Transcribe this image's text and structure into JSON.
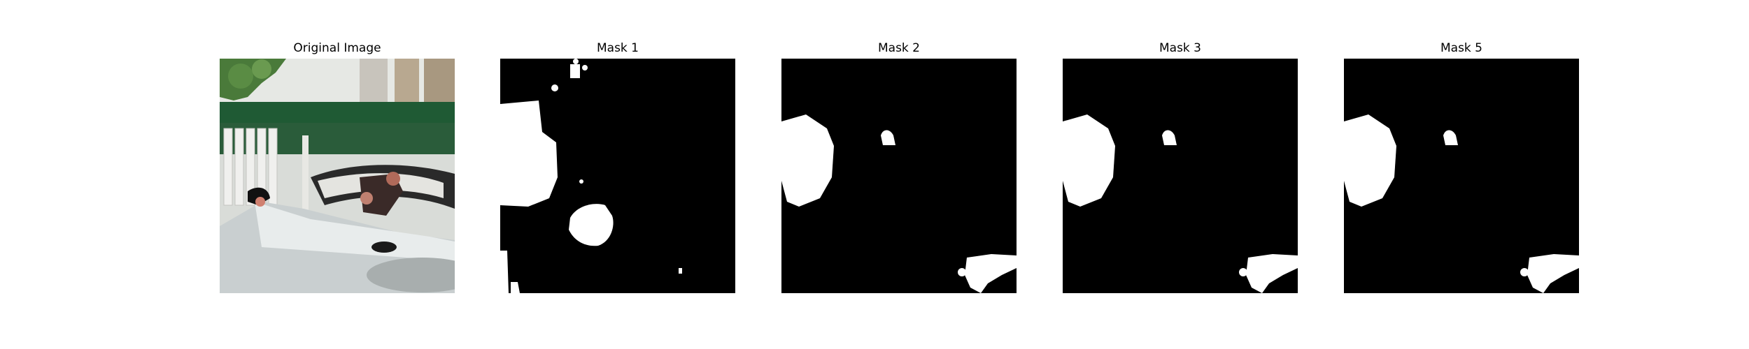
{
  "figure": {
    "panels": [
      {
        "title": "Original Image",
        "type": "photo"
      },
      {
        "title": "Mask 1",
        "type": "mask"
      },
      {
        "title": "Mask 2",
        "type": "mask"
      },
      {
        "title": "Mask 3",
        "type": "mask"
      },
      {
        "title": "Mask 5",
        "type": "mask"
      }
    ]
  },
  "colors": {
    "background": "#ffffff",
    "mask_background": "#000000",
    "mask_foreground": "#ffffff",
    "foliage": "#4a7a3a",
    "green_bar": "#1f5a34"
  }
}
